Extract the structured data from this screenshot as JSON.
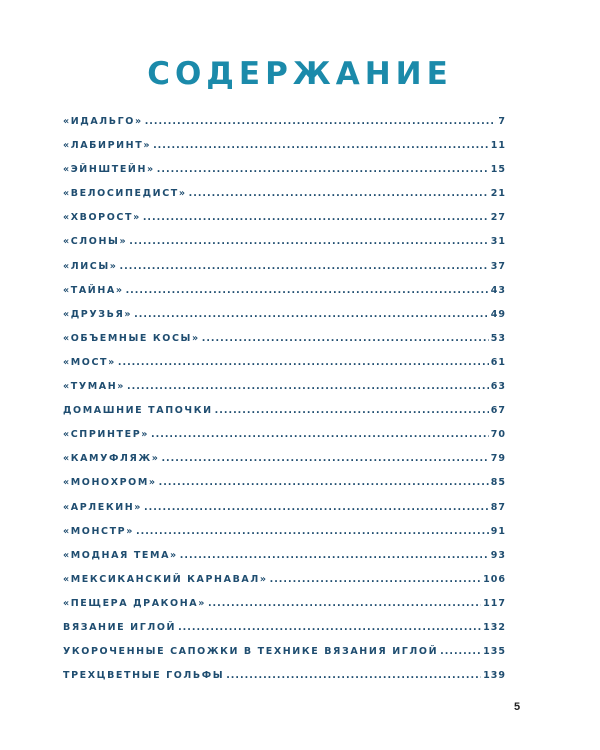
{
  "title": "СОДЕРЖАНИЕ",
  "entries": [
    {
      "label": "«ИДАЛЬГО»",
      "page": "7"
    },
    {
      "label": "«ЛАБИРИНТ»",
      "page": "11"
    },
    {
      "label": "«ЭЙНШТЕЙН»",
      "page": "15"
    },
    {
      "label": "«ВЕЛОСИПЕДИСТ»",
      "page": "21"
    },
    {
      "label": "«ХВОРОСТ»",
      "page": "27"
    },
    {
      "label": "«СЛОНЫ»",
      "page": "31"
    },
    {
      "label": "«ЛИСЫ»",
      "page": "37"
    },
    {
      "label": "«ТАЙНА»",
      "page": "43"
    },
    {
      "label": "«ДРУЗЬЯ»",
      "page": "49"
    },
    {
      "label": "«ОБЪЕМНЫЕ КОСЫ»",
      "page": "53"
    },
    {
      "label": "«МОСТ»",
      "page": "61"
    },
    {
      "label": "«ТУМАН»",
      "page": "63"
    },
    {
      "label": "ДОМАШНИЕ ТАПОЧКИ",
      "page": "67"
    },
    {
      "label": "«СПРИНТЕР»",
      "page": "70"
    },
    {
      "label": "«КАМУФЛЯЖ»",
      "page": "79"
    },
    {
      "label": "«МОНОХРОМ»",
      "page": "85"
    },
    {
      "label": "«АРЛЕКИН»",
      "page": "87"
    },
    {
      "label": "«МОНСТР»",
      "page": "91"
    },
    {
      "label": "«МОДНАЯ ТЕМА»",
      "page": "93"
    },
    {
      "label": "«МЕКСИКАНСКИЙ КАРНАВАЛ»",
      "page": "106"
    },
    {
      "label": "«ПЕЩЕРА ДРАКОНА»",
      "page": "117"
    },
    {
      "label": "ВЯЗАНИЕ ИГЛОЙ",
      "page": "132"
    },
    {
      "label": "УКОРОЧЕННЫЕ САПОЖКИ В ТЕХНИКЕ ВЯЗАНИЯ ИГЛОЙ",
      "page": "135"
    },
    {
      "label": "ТРЕХЦВЕТНЫЕ ГОЛЬФЫ",
      "page": "139"
    }
  ],
  "page_number": "5",
  "colors": {
    "title": "#1b8aaa",
    "entries": "#1f4d70"
  }
}
